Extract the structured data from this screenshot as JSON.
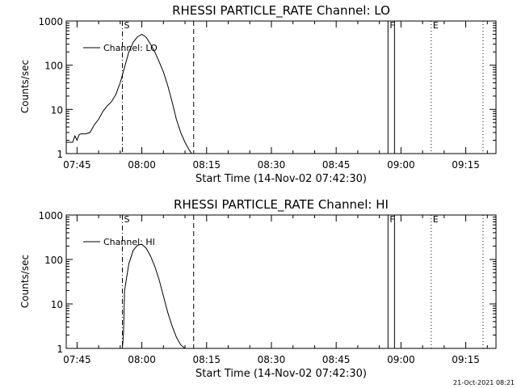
{
  "footer_stamp": "21-Oct-2021 08:21",
  "chart_data": [
    {
      "type": "line",
      "title": "RHESSI PARTICLE_RATE Channel: LO",
      "xlabel": "Start Time (14-Nov-02 07:42:30)",
      "ylabel": "Counts/sec",
      "yscale": "log",
      "xlim": [
        "07:42:30",
        "09:22:00"
      ],
      "ylim": [
        1,
        1000
      ],
      "x_ticks": [
        "07:45",
        "08:00",
        "08:15",
        "08:30",
        "08:45",
        "09:00",
        "09:15"
      ],
      "y_ticks": [
        "1",
        "10",
        "100",
        "1000"
      ],
      "legend": "top-left",
      "markers": [
        {
          "label": "S",
          "time": "07:55:30",
          "style": "dash-dot"
        },
        {
          "label": "",
          "time": "08:12:00",
          "style": "dashed"
        },
        {
          "label": "F",
          "time": "08:57:00",
          "style": "solid"
        },
        {
          "label": "",
          "time": "08:58:30",
          "style": "solid"
        },
        {
          "label": "E",
          "time": "09:07:00",
          "style": "dotted"
        },
        {
          "label": "",
          "time": "09:19:00",
          "style": "dotted"
        }
      ],
      "series": [
        {
          "name": "Channel: LO",
          "x": [
            "07:42:30",
            "07:44:00",
            "07:44:30",
            "07:45:00",
            "07:45:30",
            "07:46:00",
            "07:47:00",
            "07:48:00",
            "07:49:00",
            "07:50:00",
            "07:51:00",
            "07:52:00",
            "07:53:00",
            "07:54:00",
            "07:55:00",
            "07:56:00",
            "07:57:00",
            "07:58:00",
            "07:59:00",
            "08:00:00",
            "08:01:00",
            "08:02:00",
            "08:03:00",
            "08:04:00",
            "08:05:00",
            "08:06:00",
            "08:07:00",
            "08:08:00",
            "08:09:00",
            "08:10:00",
            "08:11:00",
            "08:11:30"
          ],
          "values": [
            1.8,
            1.8,
            2.5,
            2.0,
            2.7,
            2.8,
            2.8,
            3.0,
            4.5,
            6.0,
            9.0,
            12,
            15,
            22,
            40,
            90,
            200,
            330,
            440,
            500,
            430,
            300,
            200,
            120,
            70,
            35,
            15,
            6,
            3,
            1.8,
            1.2,
            1.0
          ]
        }
      ]
    },
    {
      "type": "line",
      "title": "RHESSI PARTICLE_RATE Channel: HI",
      "xlabel": "Start Time (14-Nov-02 07:42:30)",
      "ylabel": "Counts/sec",
      "yscale": "log",
      "xlim": [
        "07:42:30",
        "09:22:00"
      ],
      "ylim": [
        1,
        1000
      ],
      "x_ticks": [
        "07:45",
        "08:00",
        "08:15",
        "08:30",
        "08:45",
        "09:00",
        "09:15"
      ],
      "y_ticks": [
        "1",
        "10",
        "100",
        "1000"
      ],
      "legend": "top-left",
      "markers": [
        {
          "label": "S",
          "time": "07:55:30",
          "style": "dash-dot"
        },
        {
          "label": "",
          "time": "08:12:00",
          "style": "dashed"
        },
        {
          "label": "F",
          "time": "08:57:00",
          "style": "solid"
        },
        {
          "label": "",
          "time": "08:58:30",
          "style": "solid"
        },
        {
          "label": "E",
          "time": "09:07:00",
          "style": "dotted"
        },
        {
          "label": "",
          "time": "09:19:00",
          "style": "dotted"
        }
      ],
      "series": [
        {
          "name": "Channel: HI",
          "x": [
            "07:55:30",
            "07:55:45",
            "07:56:00",
            "07:57:00",
            "07:58:00",
            "07:59:00",
            "08:00:00",
            "08:01:00",
            "08:02:00",
            "08:03:00",
            "08:04:00",
            "08:05:00",
            "08:06:00",
            "08:07:00",
            "08:08:00",
            "08:09:00",
            "08:10:00"
          ],
          "values": [
            1.0,
            2.0,
            20,
            80,
            160,
            210,
            220,
            180,
            120,
            70,
            35,
            15,
            6.5,
            3.2,
            1.8,
            1.2,
            1.0
          ]
        }
      ]
    }
  ]
}
